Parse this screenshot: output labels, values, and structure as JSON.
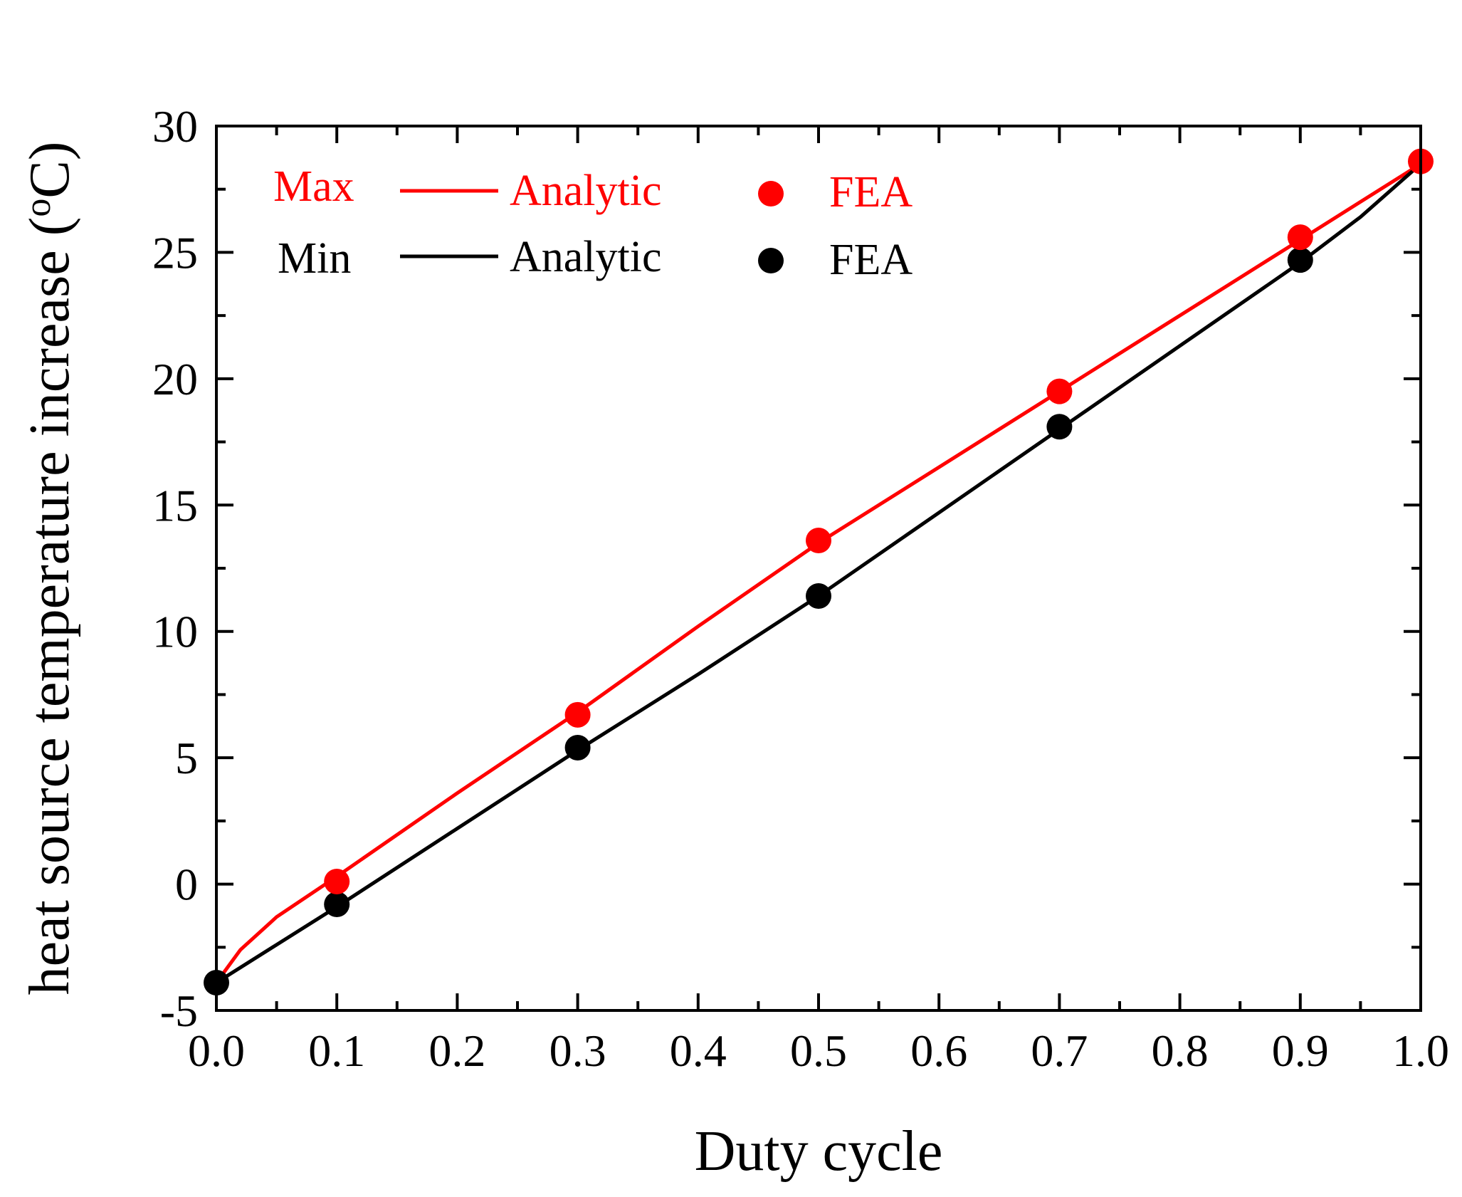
{
  "chart_data": {
    "type": "line",
    "title": "",
    "xlabel": "Duty cycle",
    "ylabel": "heat source temperature increase (",
    "ylabel_sup": "o",
    "ylabel_unit": "C)",
    "xlim": [
      0.0,
      1.0
    ],
    "ylim": [
      -5,
      30
    ],
    "xticks": [
      0.0,
      0.1,
      0.2,
      0.3,
      0.4,
      0.5,
      0.6,
      0.7,
      0.8,
      0.9,
      1.0
    ],
    "xtick_labels": [
      "0.0",
      "0.1",
      "0.2",
      "0.3",
      "0.4",
      "0.5",
      "0.6",
      "0.7",
      "0.8",
      "0.9",
      "1.0"
    ],
    "yticks": [
      -5,
      0,
      5,
      10,
      15,
      20,
      25,
      30
    ],
    "ytick_labels": [
      "-5",
      "0",
      "5",
      "10",
      "15",
      "20",
      "25",
      "30"
    ],
    "legend": {
      "position": "top-left",
      "rows": [
        {
          "group": "Max",
          "line_label": "Analytic",
          "marker_label": "FEA",
          "color": "#ff0000"
        },
        {
          "group": "Min",
          "line_label": "Analytic",
          "marker_label": "FEA",
          "color": "#000000"
        }
      ]
    },
    "series": [
      {
        "name": "Max Analytic",
        "kind": "line",
        "color": "#ff0000",
        "x": [
          0.0,
          0.02,
          0.05,
          0.1,
          0.2,
          0.3,
          0.4,
          0.5,
          0.6,
          0.7,
          0.8,
          0.9,
          1.0
        ],
        "y": [
          -3.9,
          -2.6,
          -1.3,
          0.3,
          3.6,
          6.8,
          10.2,
          13.5,
          16.5,
          19.5,
          22.5,
          25.5,
          28.5
        ]
      },
      {
        "name": "Max FEA",
        "kind": "scatter",
        "color": "#ff0000",
        "x": [
          0.1,
          0.3,
          0.5,
          0.7,
          0.9,
          1.0
        ],
        "y": [
          0.1,
          6.7,
          13.6,
          19.5,
          25.6,
          28.6
        ]
      },
      {
        "name": "Min Analytic",
        "kind": "line",
        "color": "#000000",
        "x": [
          0.0,
          0.05,
          0.1,
          0.2,
          0.3,
          0.4,
          0.5,
          0.6,
          0.7,
          0.8,
          0.9,
          0.95,
          1.0
        ],
        "y": [
          -3.9,
          -2.4,
          -0.9,
          2.2,
          5.3,
          8.3,
          11.4,
          14.7,
          18.0,
          21.3,
          24.6,
          26.4,
          28.5
        ]
      },
      {
        "name": "Min FEA",
        "kind": "scatter",
        "color": "#000000",
        "x": [
          0.0,
          0.1,
          0.3,
          0.5,
          0.7,
          0.9
        ],
        "y": [
          -3.9,
          -0.8,
          5.4,
          11.4,
          18.1,
          24.7
        ]
      }
    ]
  }
}
